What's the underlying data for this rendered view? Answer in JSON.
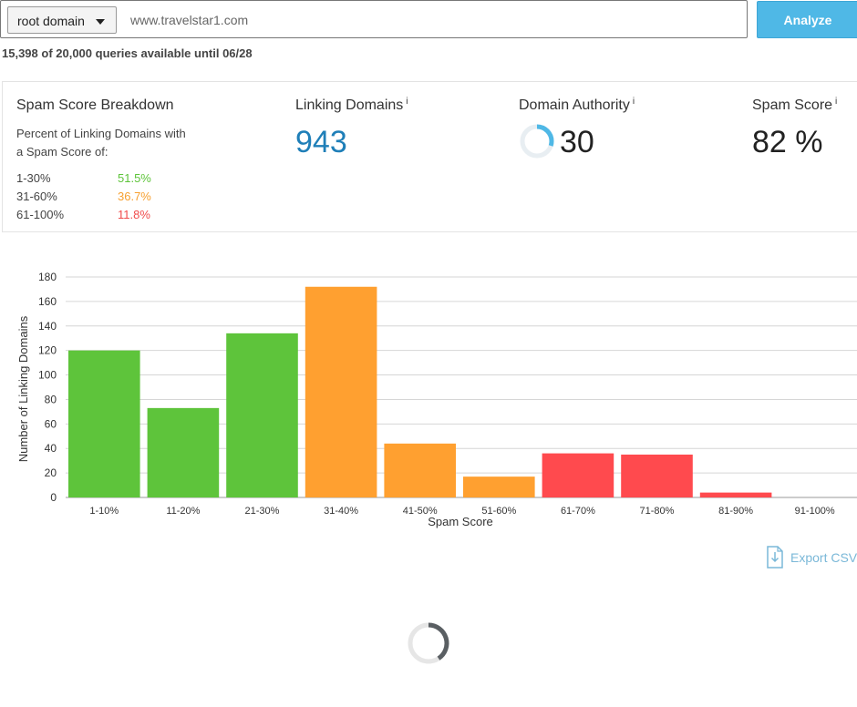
{
  "search": {
    "scope_label": "root domain",
    "url_value": "www.travelstar1.com",
    "analyze_label": "Analyze"
  },
  "quota_text": "15,398 of 20,000 queries available until 06/28",
  "breakdown": {
    "title": "Spam Score Breakdown",
    "subtitle_line1": "Percent of Linking Domains with",
    "subtitle_line2": "a Spam Score of:",
    "rows": [
      {
        "range": "1-30%",
        "percent": "51.5%",
        "color": "#5ec43b"
      },
      {
        "range": "31-60%",
        "percent": "36.7%",
        "color": "#f7a030"
      },
      {
        "range": "61-100%",
        "percent": "11.8%",
        "color": "#f04b4b"
      }
    ]
  },
  "metrics": {
    "linking_domains": {
      "label": "Linking Domains",
      "info": "i",
      "value": "943",
      "color": "#1f7fb8"
    },
    "domain_authority": {
      "label": "Domain Authority",
      "info": "i",
      "value": "30",
      "ring_fraction": 0.3,
      "ring_color": "#4fb8e6"
    },
    "spam_score": {
      "label": "Spam Score",
      "info": "i",
      "value": "82 %"
    }
  },
  "chart_data": {
    "type": "bar",
    "categories": [
      "1-10%",
      "11-20%",
      "21-30%",
      "31-40%",
      "41-50%",
      "51-60%",
      "61-70%",
      "71-80%",
      "81-90%",
      "91-100%"
    ],
    "values": [
      120,
      73,
      134,
      172,
      44,
      17,
      36,
      35,
      4,
      0
    ],
    "colors": [
      "#5ec43b",
      "#5ec43b",
      "#5ec43b",
      "#ffa030",
      "#ffa030",
      "#ffa030",
      "#ff4a4e",
      "#ff4a4e",
      "#ff4a4e",
      "#ff4a4e"
    ],
    "xlabel": "Spam Score",
    "ylabel": "Number of Linking Domains",
    "ylim": [
      0,
      180
    ],
    "yticks": [
      0,
      20,
      40,
      60,
      80,
      100,
      120,
      140,
      160,
      180
    ],
    "grid": true,
    "legend": "none"
  },
  "export_label": "Export CSV"
}
